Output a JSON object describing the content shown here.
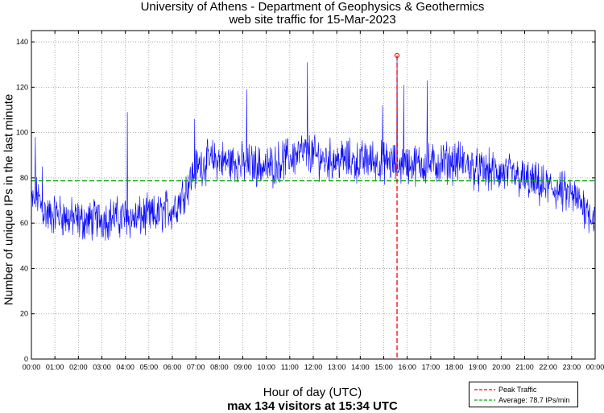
{
  "chart_data": {
    "type": "line",
    "title": "University of Athens - Department of Geophysics & Geothermics",
    "subtitle": "web site traffic for 15-Mar-2023",
    "xlabel": "Hour of day (UTC)",
    "ylabel": "Number of unique IPs in the last minute",
    "summary": "max 134 visitors at 15:34 UTC",
    "xlim_minutes": [
      0,
      1440
    ],
    "ylim": [
      0,
      145
    ],
    "y_ticks": [
      0,
      20,
      40,
      60,
      80,
      100,
      120,
      140
    ],
    "x_ticks": [
      "00:00",
      "01:00",
      "02:00",
      "03:00",
      "04:00",
      "05:00",
      "06:00",
      "07:00",
      "08:00",
      "09:00",
      "10:00",
      "11:00",
      "12:00",
      "13:00",
      "14:00",
      "15:00",
      "16:00",
      "17:00",
      "18:00",
      "19:00",
      "20:00",
      "21:00",
      "22:00",
      "23:00",
      "00:00"
    ],
    "grid": true,
    "series": [
      {
        "name": "",
        "color": "#0000ff",
        "x_hours": [
          0,
          0.25,
          0.5,
          0.75,
          1,
          1.25,
          1.5,
          1.75,
          2,
          2.25,
          2.5,
          2.75,
          3,
          3.25,
          3.5,
          3.75,
          4,
          4.25,
          4.5,
          4.75,
          5,
          5.25,
          5.5,
          5.75,
          6,
          6.25,
          6.5,
          6.75,
          7,
          7.25,
          7.5,
          7.75,
          8,
          8.25,
          8.5,
          8.75,
          9,
          9.25,
          9.5,
          9.75,
          10,
          10.25,
          10.5,
          10.75,
          11,
          11.25,
          11.5,
          11.75,
          12,
          12.25,
          12.5,
          12.75,
          13,
          13.25,
          13.5,
          13.75,
          14,
          14.25,
          14.5,
          14.75,
          15,
          15.25,
          15.5,
          15.75,
          16,
          16.25,
          16.5,
          16.75,
          17,
          17.25,
          17.5,
          17.75,
          18,
          18.25,
          18.5,
          18.75,
          19,
          19.25,
          19.5,
          19.75,
          20,
          20.25,
          20.5,
          20.75,
          21,
          21.25,
          21.5,
          21.75,
          22,
          22.25,
          22.5,
          22.75,
          23,
          23.25,
          23.5,
          23.75,
          24
        ],
        "values": [
          68,
          72,
          66,
          63,
          64,
          64,
          62,
          62,
          61,
          61,
          61,
          62,
          62,
          62,
          63,
          62,
          63,
          62,
          62,
          63,
          63,
          63,
          64,
          66,
          66,
          69,
          74,
          79,
          84,
          86,
          87,
          88,
          88,
          87,
          87,
          87,
          86,
          86,
          86,
          85,
          85,
          85,
          87,
          88,
          89,
          90,
          91,
          91,
          90,
          89,
          88,
          88,
          88,
          88,
          88,
          87,
          87,
          88,
          88,
          87,
          87,
          87,
          86,
          86,
          86,
          86,
          86,
          86,
          86,
          86,
          87,
          87,
          87,
          87,
          86,
          85,
          83,
          83,
          83,
          82,
          82,
          82,
          81,
          80,
          79,
          78,
          77,
          76,
          76,
          75,
          74,
          73,
          72,
          70,
          68,
          65,
          62
        ],
        "spikes": [
          {
            "x_hours": 0.17,
            "value": 98
          },
          {
            "x_hours": 0.47,
            "value": 85
          },
          {
            "x_hours": 4.08,
            "value": 109
          },
          {
            "x_hours": 6.95,
            "value": 106
          },
          {
            "x_hours": 9.17,
            "value": 119
          },
          {
            "x_hours": 11.75,
            "value": 131
          },
          {
            "x_hours": 14.95,
            "value": 112
          },
          {
            "x_hours": 15.85,
            "value": 121
          },
          {
            "x_hours": 16.85,
            "value": 123
          }
        ]
      }
    ],
    "peak": {
      "name": "Peak Traffic",
      "time": "15:34",
      "x_hours": 15.567,
      "value": 134,
      "color": "#ff0000"
    },
    "average": {
      "name": "Average: 78.7 IPs/min",
      "value": 78.7,
      "color": "#00aa00"
    },
    "legend_position": "bottom-right, outside plot"
  }
}
